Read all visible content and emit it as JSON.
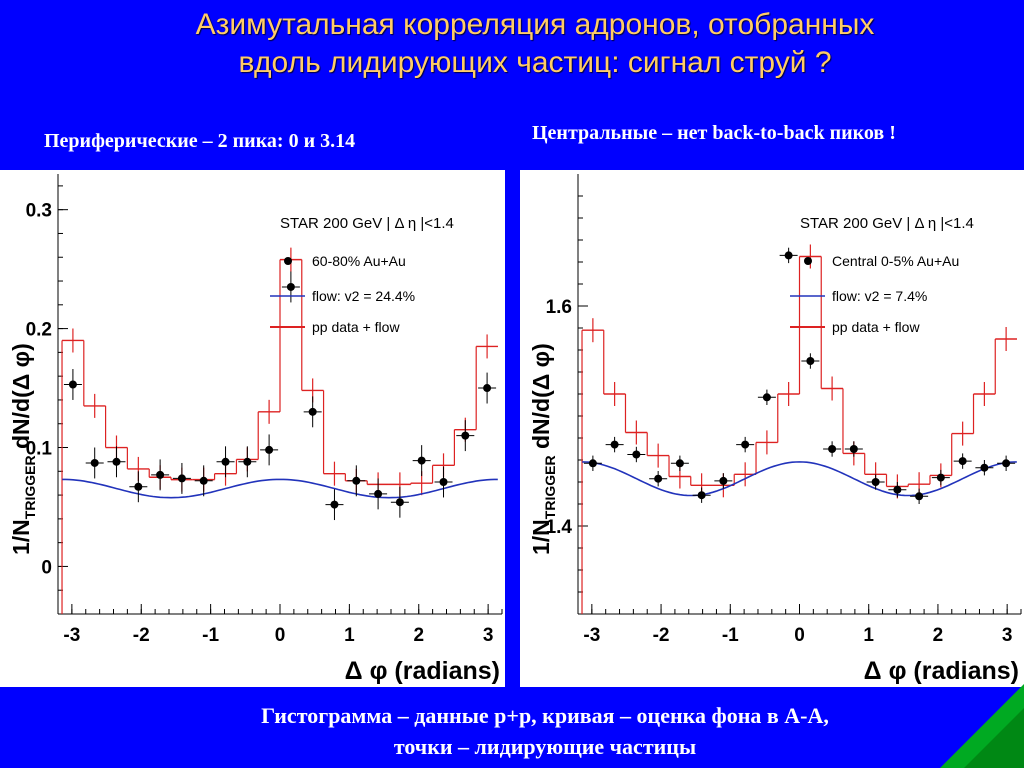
{
  "slide": {
    "title_line1": "Азимутальная корреляция адронов, отобранных",
    "title_line2": "вдоль лидирующих частиц: сигнал струй ?",
    "subtitle_left": "Периферические – 2 пика: 0 и 3.14",
    "subtitle_right": "Центральные – нет back-to-back пиков !",
    "caption_line1": "Гистограмма – данные p+p, кривая – оценка фона в А-А,",
    "caption_line2": "точки – лидирующие частицы"
  },
  "colors": {
    "background": "#0000ff",
    "title": "#ffcc66",
    "histogram": "#dd2222",
    "flow": "#2233bb",
    "points": "#000000"
  },
  "chart_data": [
    {
      "type": "line",
      "ylabel_main": "1/N",
      "ylabel_sub": "TRIGGER",
      "ylabel_tail": " dN/d(Δ φ)",
      "xlabel": "Δ φ (radians)",
      "xlim": [
        -3.2,
        3.2
      ],
      "ylim": [
        -0.04,
        0.33
      ],
      "xticks": [
        -3,
        -2,
        -1,
        0,
        1,
        2,
        3
      ],
      "xticklabels": [
        "-3",
        "-2",
        "-1",
        "0",
        "1",
        "2",
        "3"
      ],
      "yticks": [
        0,
        0.1,
        0.2,
        0.3
      ],
      "yticklabels": [
        "0",
        "0.1",
        "0.2",
        "0.3"
      ],
      "legend": {
        "header": "STAR 200 GeV | Δ η |<1.4",
        "points": "60-80% Au+Au",
        "flow": "flow: v2 = 24.4%",
        "hist": "pp data + flow"
      },
      "histogram": {
        "bin_width": 0.314,
        "x": [
          -2.985,
          -2.671,
          -2.357,
          -2.042,
          -1.728,
          -1.414,
          -1.1,
          -0.785,
          -0.471,
          -0.157,
          0.157,
          0.471,
          0.785,
          1.1,
          1.414,
          1.728,
          2.042,
          2.357,
          2.671,
          2.985
        ],
        "y": [
          0.19,
          0.135,
          0.1,
          0.082,
          0.075,
          0.073,
          0.073,
          0.078,
          0.09,
          0.13,
          0.258,
          0.148,
          0.078,
          0.072,
          0.069,
          0.069,
          0.07,
          0.085,
          0.115,
          0.185
        ]
      },
      "points": {
        "x": [
          -2.985,
          -2.671,
          -2.357,
          -2.042,
          -1.728,
          -1.414,
          -1.1,
          -0.785,
          -0.471,
          -0.157,
          0.157,
          0.471,
          0.785,
          1.1,
          1.414,
          1.728,
          2.042,
          2.357,
          2.671,
          2.985
        ],
        "y": [
          0.153,
          0.087,
          0.088,
          0.067,
          0.077,
          0.074,
          0.072,
          0.088,
          0.088,
          0.098,
          0.235,
          0.13,
          0.052,
          0.072,
          0.061,
          0.054,
          0.089,
          0.071,
          0.11,
          0.15
        ],
        "yerr": 0.013
      },
      "flow_curve": {
        "offset": 0.0655,
        "amplitude": 0.0077
      }
    },
    {
      "type": "line",
      "ylabel_main": "1/N",
      "ylabel_sub": "TRIGGER",
      "ylabel_tail": " dN/d(Δ φ)",
      "xlabel": "Δ φ (radians)",
      "xlim": [
        -3.2,
        3.2
      ],
      "ylim": [
        1.32,
        1.72
      ],
      "xticks": [
        -3,
        -2,
        -1,
        0,
        1,
        2,
        3
      ],
      "xticklabels": [
        "-3",
        "-2",
        "-1",
        "0",
        "1",
        "2",
        "3"
      ],
      "yticks": [
        1.4,
        1.6
      ],
      "yticklabels": [
        "1.4",
        "1.6"
      ],
      "legend": {
        "header": "STAR 200 GeV | Δ η |<1.4",
        "points": "Central 0-5% Au+Au",
        "flow": "flow: v2 = 7.4%",
        "hist": "pp data + flow"
      },
      "histogram": {
        "bin_width": 0.314,
        "x": [
          -2.985,
          -2.671,
          -2.357,
          -2.042,
          -1.728,
          -1.414,
          -1.1,
          -0.785,
          -0.471,
          -0.157,
          0.157,
          0.471,
          0.785,
          1.1,
          1.414,
          1.728,
          2.042,
          2.357,
          2.671,
          2.985
        ],
        "y": [
          1.578,
          1.52,
          1.485,
          1.464,
          1.445,
          1.437,
          1.437,
          1.447,
          1.476,
          1.52,
          1.645,
          1.525,
          1.466,
          1.447,
          1.436,
          1.438,
          1.446,
          1.484,
          1.52,
          1.57
        ]
      },
      "points": {
        "x": [
          -2.985,
          -2.671,
          -2.357,
          -2.042,
          -1.728,
          -1.414,
          -1.1,
          -0.785,
          -0.471,
          -0.157,
          0.157,
          0.471,
          0.785,
          1.1,
          1.414,
          1.728,
          2.042,
          2.357,
          2.671,
          2.985
        ],
        "y": [
          1.457,
          1.474,
          1.465,
          1.443,
          1.457,
          1.428,
          1.441,
          1.474,
          1.517,
          1.646,
          1.55,
          1.47,
          1.47,
          1.44,
          1.433,
          1.427,
          1.444,
          1.459,
          1.453,
          1.457
        ],
        "yerr": 0.007
      },
      "flow_curve": {
        "offset": 1.443,
        "amplitude": 0.0153
      }
    }
  ]
}
